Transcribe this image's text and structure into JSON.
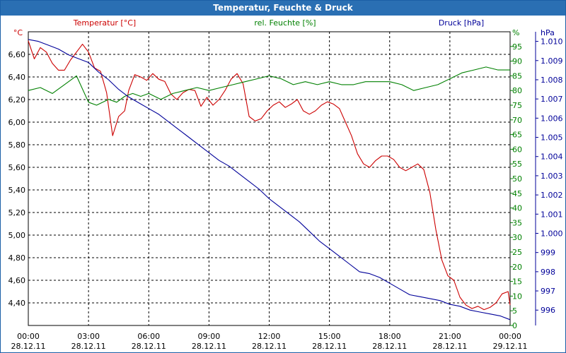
{
  "window": {
    "title": "Temperatur, Feuchte & Druck"
  },
  "colors": {
    "temperature": "#cc0000",
    "humidity": "#008000",
    "pressure": "#000099",
    "titlebar": "#2a6fb3"
  },
  "chart_data": {
    "type": "line",
    "title": "Temperatur, Feuchte & Druck",
    "x_ticks": [
      {
        "hours": 0,
        "time": "00:00",
        "date": "28.12.11"
      },
      {
        "hours": 3,
        "time": "03:00",
        "date": "28.12.11"
      },
      {
        "hours": 6,
        "time": "06:00",
        "date": "28.12.11"
      },
      {
        "hours": 9,
        "time": "09:00",
        "date": "28.12.11"
      },
      {
        "hours": 12,
        "time": "12:00",
        "date": "28.12.11"
      },
      {
        "hours": 15,
        "time": "15:00",
        "date": "28.12.11"
      },
      {
        "hours": 18,
        "time": "18:00",
        "date": "28.12.11"
      },
      {
        "hours": 21,
        "time": "21:00",
        "date": "28.12.11"
      },
      {
        "hours": 24,
        "time": "00:00",
        "date": "29.12.11"
      }
    ],
    "xlim": [
      0,
      24
    ],
    "axes": {
      "temperature": {
        "label": "Temperatur [°C]",
        "unit": "°C",
        "lim": [
          4.2,
          6.8
        ],
        "ticks": [
          "4,40",
          "4,60",
          "4,80",
          "5,00",
          "5,20",
          "5,40",
          "5,60",
          "5,80",
          "6,00",
          "6,20",
          "6,40",
          "6,60"
        ],
        "tick_values": [
          4.4,
          4.6,
          4.8,
          5.0,
          5.2,
          5.4,
          5.6,
          5.8,
          6.0,
          6.2,
          6.4,
          6.6
        ]
      },
      "humidity": {
        "label": "rel. Feuchte [%]",
        "unit": "%",
        "lim": [
          0,
          100
        ],
        "ticks": [
          "0",
          "5",
          "10",
          "15",
          "20",
          "25",
          "30",
          "35",
          "40",
          "45",
          "50",
          "55",
          "60",
          "65",
          "70",
          "75",
          "80",
          "85",
          "90",
          "95"
        ],
        "tick_values": [
          0,
          5,
          10,
          15,
          20,
          25,
          30,
          35,
          40,
          45,
          50,
          55,
          60,
          65,
          70,
          75,
          80,
          85,
          90,
          95
        ]
      },
      "pressure": {
        "label": "Druck [hPa]",
        "unit": "hPa",
        "lim": [
          995.2,
          1010.5
        ],
        "ticks": [
          "996",
          "997",
          "998",
          "999",
          "1.000",
          "1.001",
          "1.002",
          "1.003",
          "1.004",
          "1.005",
          "1.006",
          "1.007",
          "1.008",
          "1.009",
          "1.010"
        ],
        "tick_values": [
          996,
          997,
          998,
          999,
          1000,
          1001,
          1002,
          1003,
          1004,
          1005,
          1006,
          1007,
          1008,
          1009,
          1010
        ]
      }
    },
    "series": [
      {
        "name": "Temperatur [°C]",
        "axis": "temperature",
        "x": [
          0,
          0.3,
          0.6,
          0.9,
          1.2,
          1.5,
          1.8,
          2.1,
          2.4,
          2.7,
          3.0,
          3.3,
          3.6,
          3.9,
          4.2,
          4.5,
          4.8,
          5.0,
          5.3,
          5.6,
          5.9,
          6.2,
          6.5,
          6.8,
          7.1,
          7.4,
          7.7,
          8.0,
          8.3,
          8.6,
          8.9,
          9.2,
          9.5,
          9.8,
          10.1,
          10.4,
          10.7,
          11.0,
          11.3,
          11.6,
          11.9,
          12.2,
          12.5,
          12.8,
          13.1,
          13.4,
          13.7,
          14.0,
          14.3,
          14.6,
          14.9,
          15.2,
          15.5,
          15.8,
          16.1,
          16.4,
          16.7,
          17.0,
          17.3,
          17.6,
          17.9,
          18.2,
          18.5,
          18.8,
          19.1,
          19.4,
          19.7,
          20.0,
          20.3,
          20.6,
          20.9,
          21.2,
          21.5,
          21.8,
          22.1,
          22.4,
          22.7,
          23.0,
          23.3,
          23.6,
          23.9,
          24.0
        ],
        "values": [
          6.72,
          6.56,
          6.66,
          6.62,
          6.52,
          6.46,
          6.46,
          6.55,
          6.62,
          6.69,
          6.62,
          6.48,
          6.45,
          6.26,
          5.88,
          6.05,
          6.1,
          6.28,
          6.42,
          6.4,
          6.37,
          6.43,
          6.38,
          6.36,
          6.25,
          6.2,
          6.26,
          6.29,
          6.28,
          6.14,
          6.22,
          6.15,
          6.2,
          6.28,
          6.38,
          6.43,
          6.34,
          6.05,
          6.01,
          6.03,
          6.1,
          6.15,
          6.18,
          6.13,
          6.16,
          6.2,
          6.1,
          6.07,
          6.1,
          6.15,
          6.18,
          6.16,
          6.12,
          6.0,
          5.88,
          5.72,
          5.63,
          5.6,
          5.66,
          5.7,
          5.7,
          5.67,
          5.6,
          5.57,
          5.6,
          5.63,
          5.58,
          5.38,
          5.05,
          4.78,
          4.64,
          4.6,
          4.45,
          4.38,
          4.35,
          4.37,
          4.34,
          4.36,
          4.4,
          4.48,
          4.5,
          4.38
        ]
      },
      {
        "name": "rel. Feuchte [%]",
        "axis": "humidity",
        "x": [
          0,
          0.6,
          1.2,
          1.8,
          2.4,
          3.0,
          3.4,
          4.0,
          4.4,
          4.8,
          5.2,
          5.6,
          6.0,
          6.6,
          7.2,
          7.8,
          8.4,
          9.0,
          9.6,
          10.2,
          10.8,
          11.4,
          12.0,
          12.6,
          13.2,
          13.8,
          14.4,
          15.0,
          15.6,
          16.2,
          16.8,
          17.4,
          18.0,
          18.6,
          19.2,
          19.8,
          20.4,
          21.0,
          21.6,
          22.2,
          22.8,
          23.4,
          24.0
        ],
        "values": [
          80,
          81,
          79,
          82,
          85,
          76,
          75,
          77,
          76,
          78,
          79,
          78,
          79,
          77,
          79,
          80,
          81,
          80,
          81,
          82,
          83,
          84,
          85,
          84,
          82,
          83,
          82,
          83,
          82,
          82,
          83,
          83,
          83,
          82,
          80,
          81,
          82,
          84,
          86,
          87,
          88,
          87,
          87
        ]
      },
      {
        "name": "Druck [hPa]",
        "axis": "pressure",
        "x": [
          0,
          0.5,
          1.0,
          1.5,
          2.0,
          2.5,
          3.0,
          3.5,
          4.0,
          4.5,
          5.0,
          5.5,
          6.0,
          6.5,
          7.0,
          7.5,
          8.0,
          8.5,
          9.0,
          9.5,
          10.0,
          10.5,
          11.0,
          11.5,
          12.0,
          12.5,
          13.0,
          13.5,
          14.0,
          14.5,
          15.0,
          15.5,
          16.0,
          16.5,
          17.0,
          17.5,
          18.0,
          18.5,
          19.0,
          19.5,
          20.0,
          20.5,
          21.0,
          21.5,
          22.0,
          22.5,
          23.0,
          23.5,
          24.0
        ],
        "values": [
          1010.1,
          1010.0,
          1009.8,
          1009.6,
          1009.3,
          1009.1,
          1008.9,
          1008.4,
          1008.0,
          1007.5,
          1007.1,
          1006.8,
          1006.5,
          1006.2,
          1005.8,
          1005.4,
          1005.0,
          1004.6,
          1004.2,
          1003.8,
          1003.5,
          1003.1,
          1002.7,
          1002.3,
          1001.8,
          1001.4,
          1001.0,
          1000.6,
          1000.1,
          999.6,
          999.2,
          998.8,
          998.4,
          998.0,
          997.9,
          997.7,
          997.4,
          997.1,
          996.8,
          996.7,
          996.6,
          996.5,
          996.3,
          996.2,
          996.0,
          995.9,
          995.8,
          995.7,
          995.5
        ]
      }
    ]
  }
}
